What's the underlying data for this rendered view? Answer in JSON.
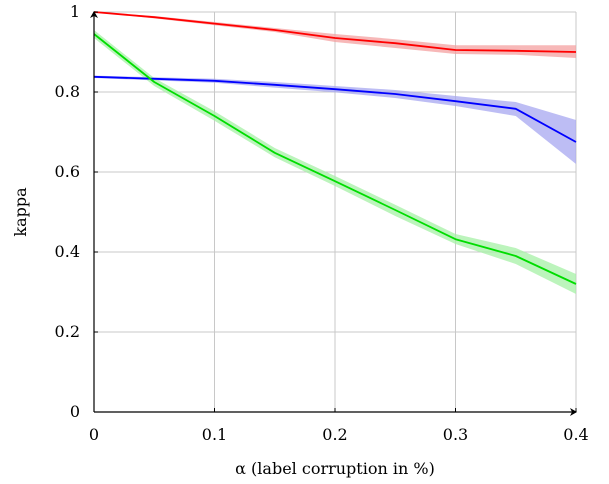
{
  "chart_data": {
    "type": "line",
    "xlabel": "α (label corruption in %)",
    "ylabel": "kappa",
    "xlim": [
      0,
      0.4
    ],
    "ylim": [
      0,
      1
    ],
    "xticks": [
      "0",
      "0.1",
      "0.2",
      "0.3",
      "0.4"
    ],
    "yticks": [
      "0",
      "0.2",
      "0.4",
      "0.6",
      "0.8",
      "1"
    ],
    "grid": true,
    "series": [
      {
        "color": "#ff0000",
        "band_color": "#f4a0a0",
        "x": [
          0,
          0.05,
          0.1,
          0.15,
          0.2,
          0.25,
          0.3,
          0.35,
          0.4
        ],
        "y": [
          1.0,
          0.987,
          0.971,
          0.955,
          0.935,
          0.922,
          0.905,
          0.903,
          0.9
        ],
        "lower": [
          1.0,
          0.984,
          0.967,
          0.95,
          0.925,
          0.91,
          0.895,
          0.893,
          0.885
        ],
        "upper": [
          1.0,
          0.99,
          0.975,
          0.96,
          0.945,
          0.932,
          0.917,
          0.917,
          0.917
        ]
      },
      {
        "color": "#0000ff",
        "band_color": "#a7a7f0",
        "x": [
          0,
          0.05,
          0.1,
          0.15,
          0.2,
          0.25,
          0.3,
          0.35,
          0.4
        ],
        "y": [
          0.838,
          0.833,
          0.828,
          0.818,
          0.807,
          0.795,
          0.777,
          0.758,
          0.675
        ],
        "lower": [
          0.835,
          0.829,
          0.823,
          0.811,
          0.799,
          0.785,
          0.765,
          0.74,
          0.62
        ],
        "upper": [
          0.841,
          0.837,
          0.833,
          0.825,
          0.815,
          0.805,
          0.79,
          0.775,
          0.73
        ]
      },
      {
        "color": "#00dd00",
        "band_color": "#a6f0a6",
        "x": [
          0,
          0.05,
          0.1,
          0.15,
          0.2,
          0.25,
          0.3,
          0.35,
          0.4
        ],
        "y": [
          0.945,
          0.825,
          0.74,
          0.648,
          0.577,
          0.505,
          0.432,
          0.39,
          0.32
        ],
        "lower": [
          0.935,
          0.815,
          0.728,
          0.637,
          0.565,
          0.49,
          0.42,
          0.37,
          0.295
        ],
        "upper": [
          0.955,
          0.835,
          0.752,
          0.66,
          0.59,
          0.518,
          0.445,
          0.41,
          0.345
        ]
      }
    ]
  }
}
